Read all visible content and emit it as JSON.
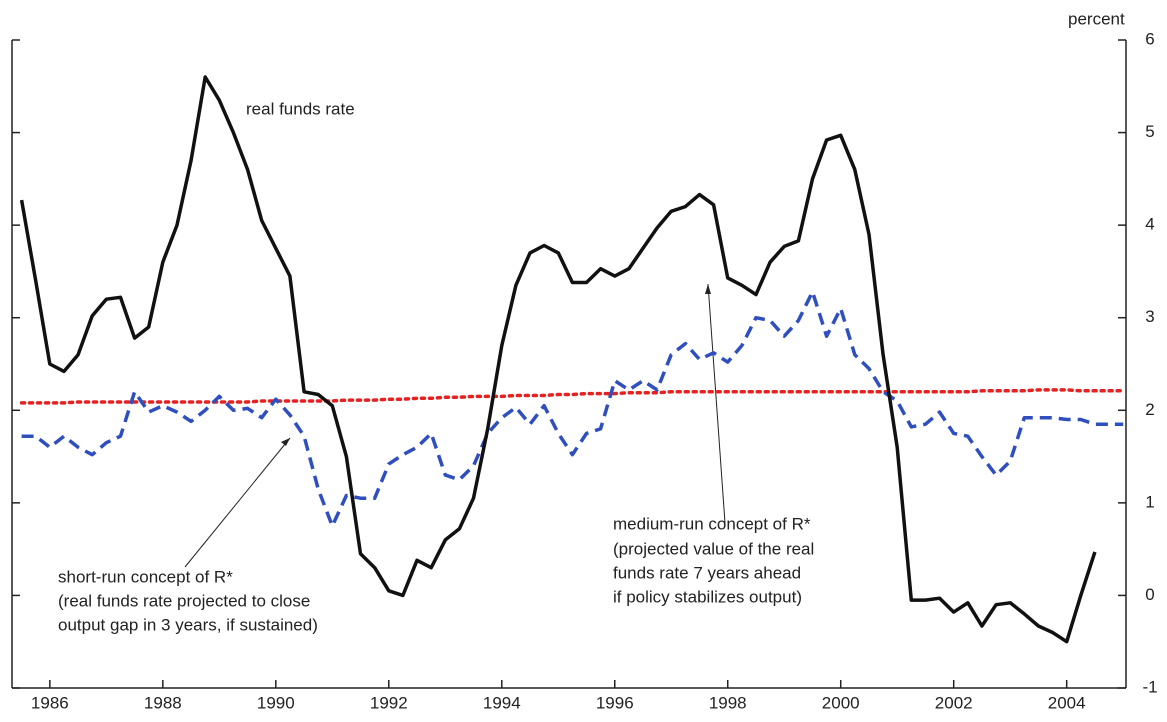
{
  "chart_data": {
    "type": "line",
    "y_unit_label": "percent",
    "x": [
      1985.5,
      1985.75,
      1986,
      1986.25,
      1986.5,
      1986.75,
      1987,
      1987.25,
      1987.5,
      1987.75,
      1988,
      1988.25,
      1988.5,
      1988.75,
      1989,
      1989.25,
      1989.5,
      1989.75,
      1990,
      1990.25,
      1990.5,
      1990.75,
      1991,
      1991.25,
      1991.5,
      1991.75,
      1992,
      1992.25,
      1992.5,
      1992.75,
      1993,
      1993.25,
      1993.5,
      1993.75,
      1994,
      1994.25,
      1994.5,
      1994.75,
      1995,
      1995.25,
      1995.5,
      1995.75,
      1996,
      1996.25,
      1996.5,
      1996.75,
      1997,
      1997.25,
      1997.5,
      1997.75,
      1998,
      1998.25,
      1998.5,
      1998.75,
      1999,
      1999.25,
      1999.5,
      1999.75,
      2000,
      2000.25,
      2000.5,
      2000.75,
      2001,
      2001.25,
      2001.5,
      2001.75,
      2002,
      2002.25,
      2002.5,
      2002.75,
      2003,
      2003.25,
      2003.5,
      2003.75,
      2004,
      2004.25,
      2004.5,
      2004.75,
      2005
    ],
    "series": [
      {
        "name": "real funds rate",
        "color": "#111111",
        "dash": "solid",
        "width": 3.5,
        "values": [
          4.27,
          3.4,
          2.5,
          2.42,
          2.6,
          3.02,
          3.2,
          3.22,
          2.78,
          2.9,
          3.6,
          4.0,
          4.7,
          5.6,
          5.35,
          5.0,
          4.6,
          4.05,
          3.75,
          3.45,
          2.2,
          2.17,
          2.05,
          1.5,
          0.45,
          0.3,
          0.05,
          0.0,
          0.38,
          0.3,
          0.6,
          0.72,
          1.05,
          1.8,
          2.7,
          3.35,
          3.7,
          3.78,
          3.7,
          3.38,
          3.38,
          3.53,
          3.45,
          3.53,
          3.75,
          3.97,
          4.15,
          4.2,
          4.33,
          4.22,
          3.43,
          3.35,
          3.25,
          3.6,
          3.77,
          3.83,
          4.5,
          4.92,
          4.97,
          4.6,
          3.9,
          2.6,
          1.6,
          -0.05,
          -0.05,
          -0.03,
          -0.18,
          -0.08,
          -0.33,
          -0.1,
          -0.08,
          -0.2,
          -0.33,
          -0.4,
          -0.5,
          0.0,
          0.47,
          null,
          null
        ]
      },
      {
        "name": "short-run concept of R*",
        "color": "#2f4fbf",
        "dash": "dashed",
        "width": 3.5,
        "values": [
          1.72,
          1.72,
          1.6,
          1.72,
          1.6,
          1.52,
          1.65,
          1.72,
          2.2,
          1.98,
          2.05,
          1.98,
          1.88,
          2.0,
          2.15,
          2.0,
          2.02,
          1.92,
          2.12,
          1.95,
          1.72,
          1.15,
          0.75,
          1.08,
          1.05,
          1.05,
          1.42,
          1.52,
          1.6,
          1.75,
          1.3,
          1.25,
          1.4,
          1.75,
          1.92,
          2.03,
          1.85,
          2.05,
          1.75,
          1.52,
          1.75,
          1.8,
          2.32,
          2.22,
          2.32,
          2.22,
          2.6,
          2.72,
          2.55,
          2.62,
          2.52,
          2.7,
          3.0,
          2.97,
          2.8,
          2.97,
          3.28,
          2.8,
          3.1,
          2.6,
          2.45,
          2.2,
          2.1,
          1.82,
          1.85,
          1.98,
          1.75,
          1.72,
          1.5,
          1.3,
          1.45,
          1.92,
          1.92,
          1.92,
          1.9,
          1.9,
          1.85,
          1.85,
          1.85
        ]
      },
      {
        "name": "medium-run concept of R*",
        "color": "#e52222",
        "dash": "dotted",
        "width": 3.5,
        "values": [
          2.08,
          2.08,
          2.08,
          2.08,
          2.09,
          2.09,
          2.09,
          2.09,
          2.09,
          2.09,
          2.09,
          2.09,
          2.09,
          2.09,
          2.09,
          2.09,
          2.09,
          2.1,
          2.1,
          2.1,
          2.1,
          2.1,
          2.1,
          2.11,
          2.11,
          2.11,
          2.12,
          2.12,
          2.13,
          2.13,
          2.14,
          2.14,
          2.15,
          2.15,
          2.15,
          2.16,
          2.16,
          2.16,
          2.17,
          2.17,
          2.18,
          2.18,
          2.18,
          2.19,
          2.19,
          2.19,
          2.2,
          2.2,
          2.2,
          2.2,
          2.2,
          2.2,
          2.2,
          2.2,
          2.2,
          2.2,
          2.2,
          2.2,
          2.2,
          2.2,
          2.2,
          2.2,
          2.2,
          2.2,
          2.2,
          2.2,
          2.2,
          2.2,
          2.21,
          2.21,
          2.21,
          2.21,
          2.22,
          2.22,
          2.22,
          2.21,
          2.21,
          2.21,
          2.21
        ]
      }
    ],
    "short_run_note": [
      "(real funds rate projected to close",
      "output gap in 3 years, if sustained)"
    ],
    "medium_run_note": [
      "(projected value of the real",
      "funds rate 7 years ahead",
      "if policy stabilizes output)"
    ],
    "xlim": [
      1985.33,
      2005.05
    ],
    "xticks": [
      1986,
      1988,
      1990,
      1992,
      1994,
      1996,
      1998,
      2000,
      2002,
      2004
    ],
    "ylim": [
      -1,
      6
    ],
    "yticks": [
      -1,
      0,
      1,
      2,
      3,
      4,
      5,
      6
    ]
  }
}
